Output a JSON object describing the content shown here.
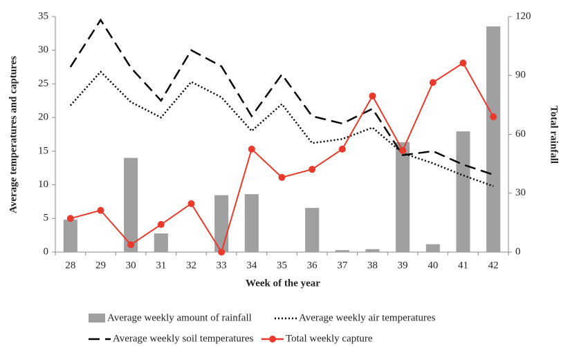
{
  "chart_data": {
    "type": "combo",
    "x_label": "Week of the year",
    "y_label": "Average temperatures and captures",
    "y2_label": "Total rainfall",
    "categories": [
      "28",
      "29",
      "30",
      "31",
      "32",
      "33",
      "34",
      "35",
      "36",
      "37",
      "38",
      "39",
      "40",
      "41",
      "42"
    ],
    "ylim": [
      0,
      35
    ],
    "yticks": [
      0,
      5,
      10,
      15,
      20,
      25,
      30,
      35
    ],
    "y2lim": [
      0,
      120
    ],
    "y2ticks": [
      0,
      30,
      60,
      90,
      120
    ],
    "grid": false,
    "series": [
      {
        "name": "Average weekly amount of rainfall",
        "type": "bar",
        "axis": "y2",
        "color": "#a0a0a0",
        "values": [
          16.5,
          0,
          48,
          9.5,
          0,
          29,
          29.5,
          0,
          22.5,
          1,
          1.5,
          56,
          4,
          61.5,
          115
        ]
      },
      {
        "name": "Average weekly air temperatures",
        "type": "line",
        "style": "dotted",
        "color": "#000000",
        "values": [
          21.8,
          26.8,
          22.3,
          20,
          25.3,
          23,
          18,
          22,
          16.2,
          16.8,
          18.5,
          14.7,
          13.2,
          11.4,
          9.8
        ]
      },
      {
        "name": "Average weekly soil temperatures",
        "type": "line",
        "style": "dashed",
        "color": "#000000",
        "values": [
          27.5,
          34.5,
          27.4,
          22.5,
          30,
          27.6,
          20.2,
          26.4,
          20.2,
          19.1,
          21.3,
          14.4,
          15,
          13,
          11.5
        ]
      },
      {
        "name": "Total weekly capture",
        "type": "line",
        "style": "solid",
        "marker": true,
        "color": "#e8392b",
        "values": [
          5,
          6.2,
          1.1,
          4.1,
          7.2,
          0,
          15.3,
          11.1,
          12.3,
          15.3,
          23.2,
          15.1,
          25.2,
          28.1,
          20.1
        ]
      }
    ]
  }
}
